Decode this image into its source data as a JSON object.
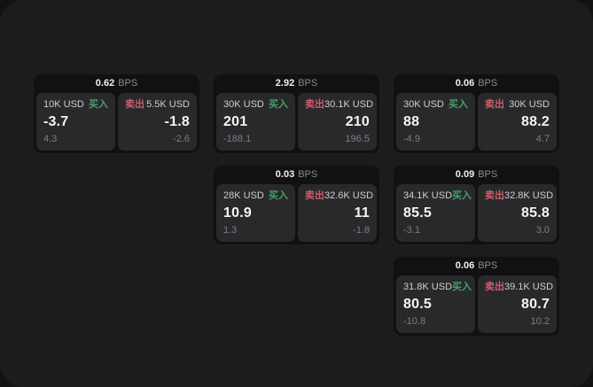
{
  "labels": {
    "bps": "BPS",
    "buy": "买入",
    "sell": "卖出"
  },
  "colors": {
    "panel_bg": "#1c1c1e",
    "backdrop": "#121214",
    "card_bg": "#111113",
    "tile_bg": "#29292b",
    "buy_green": "#44a06a",
    "sell_red": "#d05c6c",
    "value_white": "#f5f5f7",
    "muted_gray": "#7e7e84"
  },
  "cards": [
    {
      "bps": "0.62",
      "buy": {
        "amount": "10K USD",
        "value": "-3.7",
        "sub": "4.3"
      },
      "sell": {
        "amount": "5.5K USD",
        "value": "-1.8",
        "sub": "-2.6"
      }
    },
    {
      "bps": "2.92",
      "buy": {
        "amount": "30K USD",
        "value": "201",
        "sub": "-188.1"
      },
      "sell": {
        "amount": "30.1K USD",
        "value": "210",
        "sub": "196.5"
      }
    },
    {
      "bps": "0.06",
      "buy": {
        "amount": "30K USD",
        "value": "88",
        "sub": "-4.9"
      },
      "sell": {
        "amount": "30K USD",
        "value": "88.2",
        "sub": "4.7"
      }
    },
    {
      "bps": "0.03",
      "buy": {
        "amount": "28K USD",
        "value": "10.9",
        "sub": "1.3"
      },
      "sell": {
        "amount": "32.6K USD",
        "value": "11",
        "sub": "-1.8"
      }
    },
    {
      "bps": "0.09",
      "buy": {
        "amount": "34.1K USD",
        "value": "85.5",
        "sub": "-3.1"
      },
      "sell": {
        "amount": "32.8K USD",
        "value": "85.8",
        "sub": "3.0"
      }
    },
    {
      "bps": "0.06",
      "buy": {
        "amount": "31.8K USD",
        "value": "80.5",
        "sub": "-10.8"
      },
      "sell": {
        "amount": "39.1K USD",
        "value": "80.7",
        "sub": "10.2"
      }
    }
  ]
}
